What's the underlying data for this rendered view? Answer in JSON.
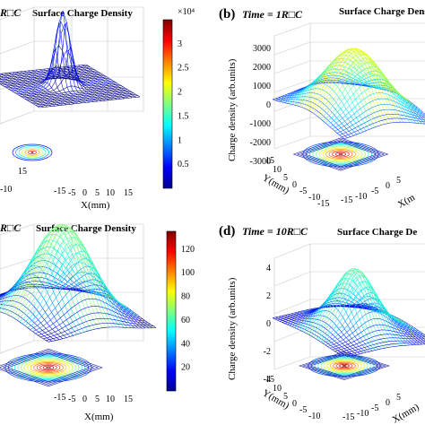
{
  "figure": {
    "panels": [
      {
        "id": "a",
        "title": "Surface Charge Density",
        "time_label": "",
        "panel_letter": "",
        "colorbar": {
          "ticks": [
            "3",
            "2.5",
            "2",
            "1.5",
            "1",
            "0.5"
          ],
          "multiplier": "×10⁴",
          "range": [
            0,
            35000
          ]
        },
        "x_ticks": [
          "-15",
          "-10",
          "-5",
          "0",
          "5",
          "10",
          "15"
        ],
        "y_ticks": [
          "-10",
          "15"
        ],
        "z_ticks": [],
        "xlabel": "X(mm)",
        "ylabel": "",
        "zlabel": "",
        "header_fragment": "R□C"
      },
      {
        "id": "b",
        "title": "Surface Charge Density",
        "time_label": "Time = 1R□C",
        "panel_letter": "(b)",
        "colorbar": null,
        "x_ticks": [
          "-15",
          "-10",
          "-5",
          "0",
          "5",
          "10",
          "15"
        ],
        "y_ticks": [
          "15",
          "10",
          "5",
          "0",
          "-5",
          "-10",
          "-15"
        ],
        "z_ticks": [
          "3000",
          "2000",
          "1000",
          "0",
          "-1000",
          "-2000",
          "-3000"
        ],
        "xlabel": "X(m",
        "ylabel": "Y(mm)",
        "zlabel": "Charge density (arb.units)"
      },
      {
        "id": "c",
        "title": "Surface Charge Density",
        "time_label": "",
        "panel_letter": "",
        "colorbar": {
          "ticks": [
            "120",
            "100",
            "80",
            "60",
            "40",
            "20"
          ],
          "multiplier": "",
          "range": [
            0,
            135
          ]
        },
        "x_ticks": [
          "-15",
          "-10",
          "-5",
          "0",
          "5",
          "10",
          "15"
        ],
        "y_ticks": [],
        "z_ticks": [],
        "xlabel": "X(mm)",
        "ylabel": "",
        "zlabel": "",
        "header_fragment": "R□C"
      },
      {
        "id": "d",
        "title": "Surface Charge De",
        "time_label": "Time = 10R□C",
        "panel_letter": "(d)",
        "colorbar": null,
        "x_ticks": [
          "-15",
          "-10",
          "-5",
          "0",
          "5",
          "10",
          "15"
        ],
        "y_ticks": [
          "15",
          "10",
          "5",
          "0",
          "-5",
          "-10",
          "-15"
        ],
        "z_ticks": [
          "4",
          "2",
          "0",
          "-2",
          "-4"
        ],
        "xlabel": "X(mm)",
        "ylabel": "Y(mm)",
        "zlabel": "Charge density (arb.units)"
      }
    ]
  },
  "chart_data": [
    {
      "type": "surface3d",
      "panel": "a",
      "title": "Surface Charge Density",
      "xlabel": "X(mm)",
      "ylabel": "",
      "zlabel": "",
      "colormap": "jet",
      "color_range": [
        0,
        35000
      ],
      "peak": 35000,
      "description_shape": "narrow gaussian peak at center, flat surface elsewhere"
    },
    {
      "type": "surface3d",
      "panel": "b",
      "title": "Surface Charge Density",
      "xlabel": "X(mm)",
      "ylabel": "Y(mm)",
      "zlabel": "Charge density (arb.units)",
      "xlim": [
        -15,
        15
      ],
      "ylim": [
        -15,
        15
      ],
      "zlim": [
        -3000,
        3000
      ],
      "colormap": "jet",
      "peak": 2600,
      "min": -800
    },
    {
      "type": "surface3d",
      "panel": "c",
      "title": "Surface Charge Density",
      "xlabel": "X(mm)",
      "ylabel": "",
      "zlabel": "",
      "colormap": "jet",
      "color_range": [
        0,
        135
      ],
      "peak": 130
    },
    {
      "type": "surface3d",
      "panel": "d",
      "title": "Surface Charge De",
      "xlabel": "X(mm)",
      "ylabel": "Y(mm)",
      "zlabel": "Charge density (arb.units)",
      "xlim": [
        -15,
        15
      ],
      "ylim": [
        -15,
        15
      ],
      "zlim": [
        -4,
        4
      ],
      "colormap": "jet",
      "peak": 3.6,
      "min": -1.2
    }
  ]
}
